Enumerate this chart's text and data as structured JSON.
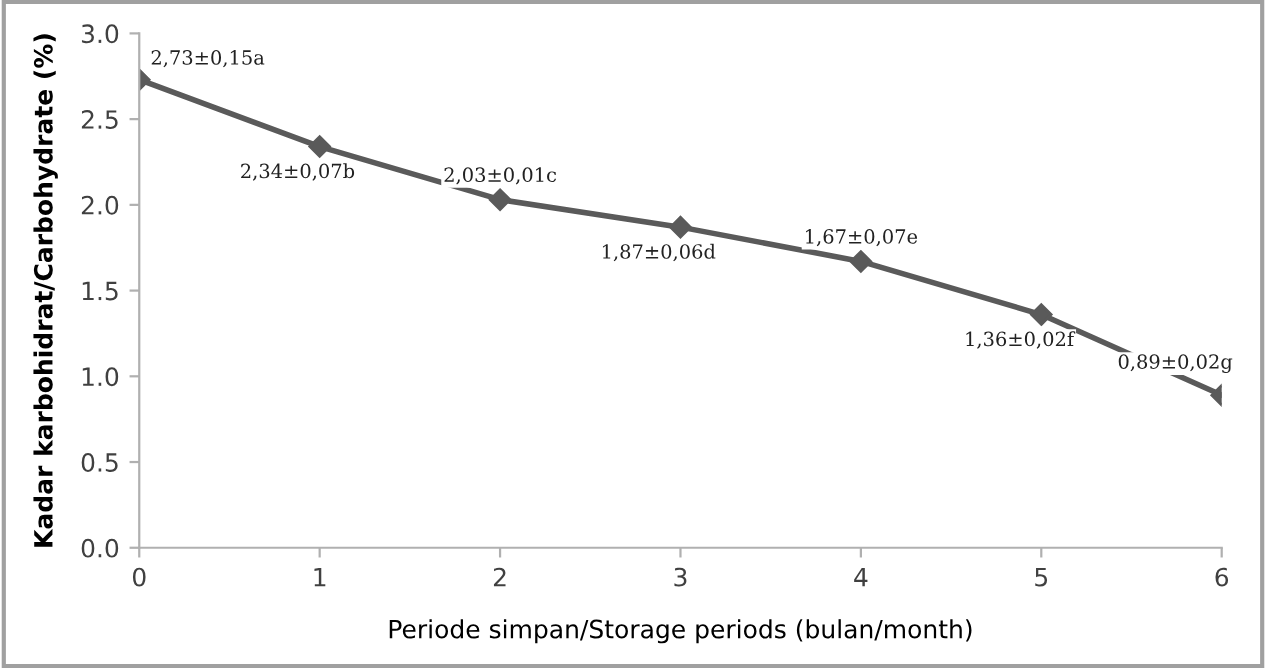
{
  "chart_data": {
    "type": "line",
    "xlabel": "Periode simpan/Storage periods (bulan/month)",
    "ylabel": "Kadar karbohidrat/Carbohydrate (%)",
    "x": [
      0,
      1,
      2,
      3,
      4,
      5,
      6
    ],
    "series": [
      {
        "color": "#5a5a5a",
        "values": [
          2.73,
          2.34,
          2.03,
          1.87,
          1.67,
          1.36,
          0.89
        ],
        "value_labels": [
          "2,73±0,15a",
          "2,34±0,07b",
          "2,03±0,01c",
          "1,87±0,06d",
          "1,67±0,07e",
          "1,36±0,02f",
          "0,89±0,02g"
        ]
      }
    ],
    "xlim": [
      0,
      6
    ],
    "ylim": [
      0,
      3
    ],
    "xticks": [
      0,
      1,
      2,
      3,
      4,
      5,
      6
    ],
    "yticks": [
      {
        "value": 0,
        "label": "0.0"
      },
      0.5,
      {
        "value": 1,
        "label": "1.0"
      },
      1.5,
      {
        "value": 2,
        "label": "2.0"
      },
      2.5,
      {
        "value": 3,
        "label": "3.0"
      }
    ],
    "marker": "diamond",
    "line_style": "solid",
    "grid": false,
    "legend": false
  }
}
